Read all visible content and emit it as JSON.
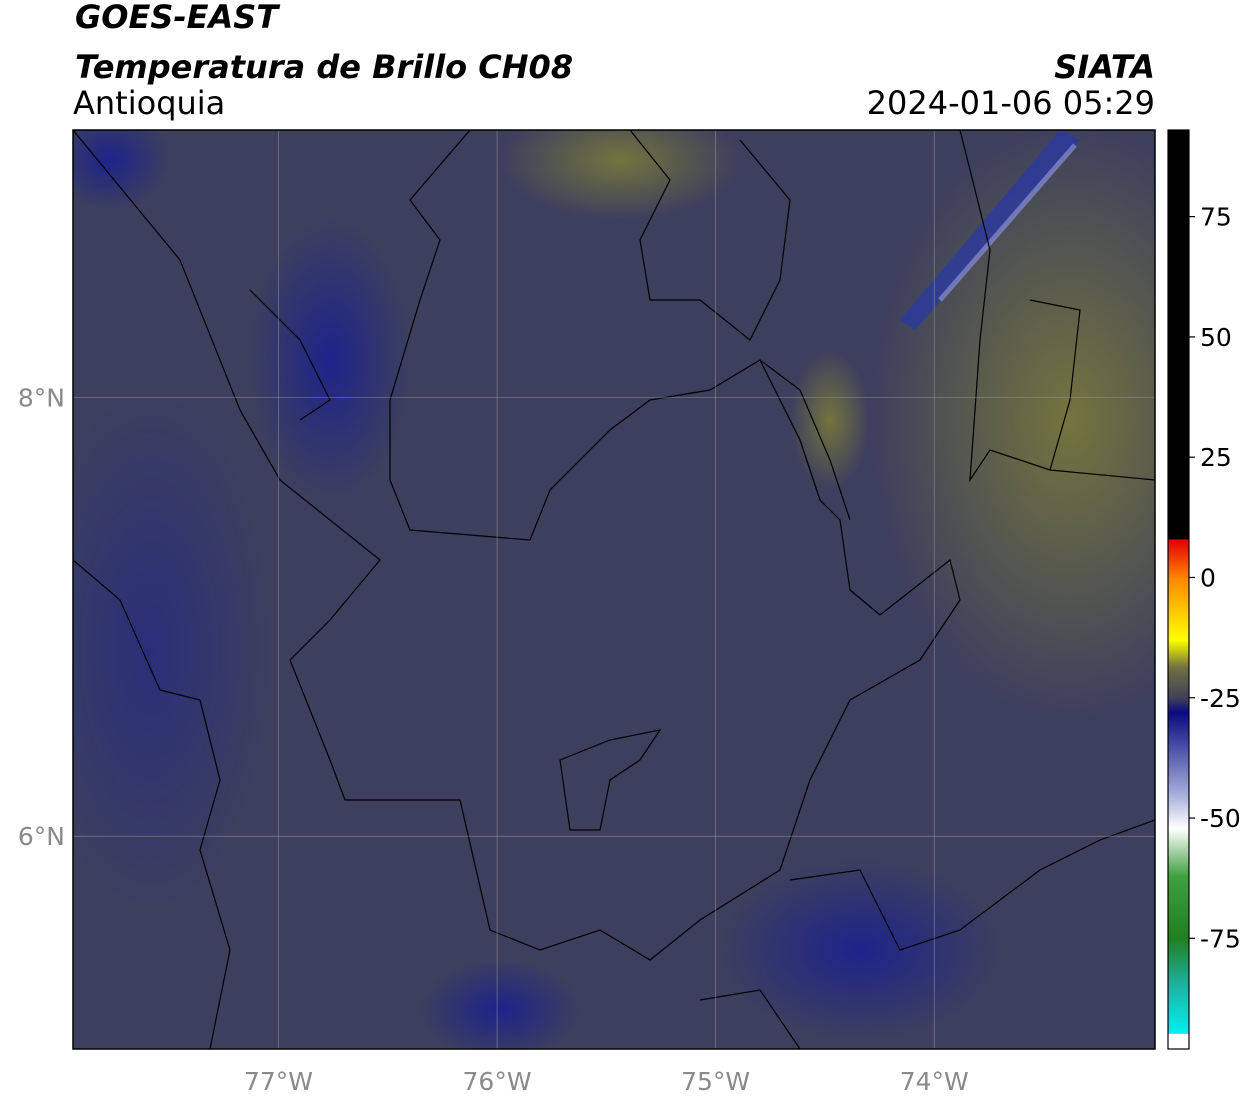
{
  "header": {
    "satellite": "GOES-EAST",
    "product": "Temperatura de Brillo CH08",
    "region": "Antioquia",
    "source": "SIATA",
    "timestamp": "2024-01-06 05:29"
  },
  "map": {
    "lonlim": [
      -77.94,
      -72.99
    ],
    "latlim": [
      5.03,
      9.22
    ],
    "lon_ticks": [
      {
        "value": -77,
        "label": "77°W"
      },
      {
        "value": -76,
        "label": "76°W"
      },
      {
        "value": -75,
        "label": "75°W"
      },
      {
        "value": -74,
        "label": "74°W"
      }
    ],
    "lat_ticks": [
      {
        "value": 8,
        "label": "8°N"
      },
      {
        "value": 6,
        "label": "6°N"
      }
    ],
    "grid": true
  },
  "colorbar": {
    "lim": [
      -98,
      93
    ],
    "ticks": [
      75,
      50,
      25,
      0,
      -25,
      -50,
      -75
    ]
  }
}
